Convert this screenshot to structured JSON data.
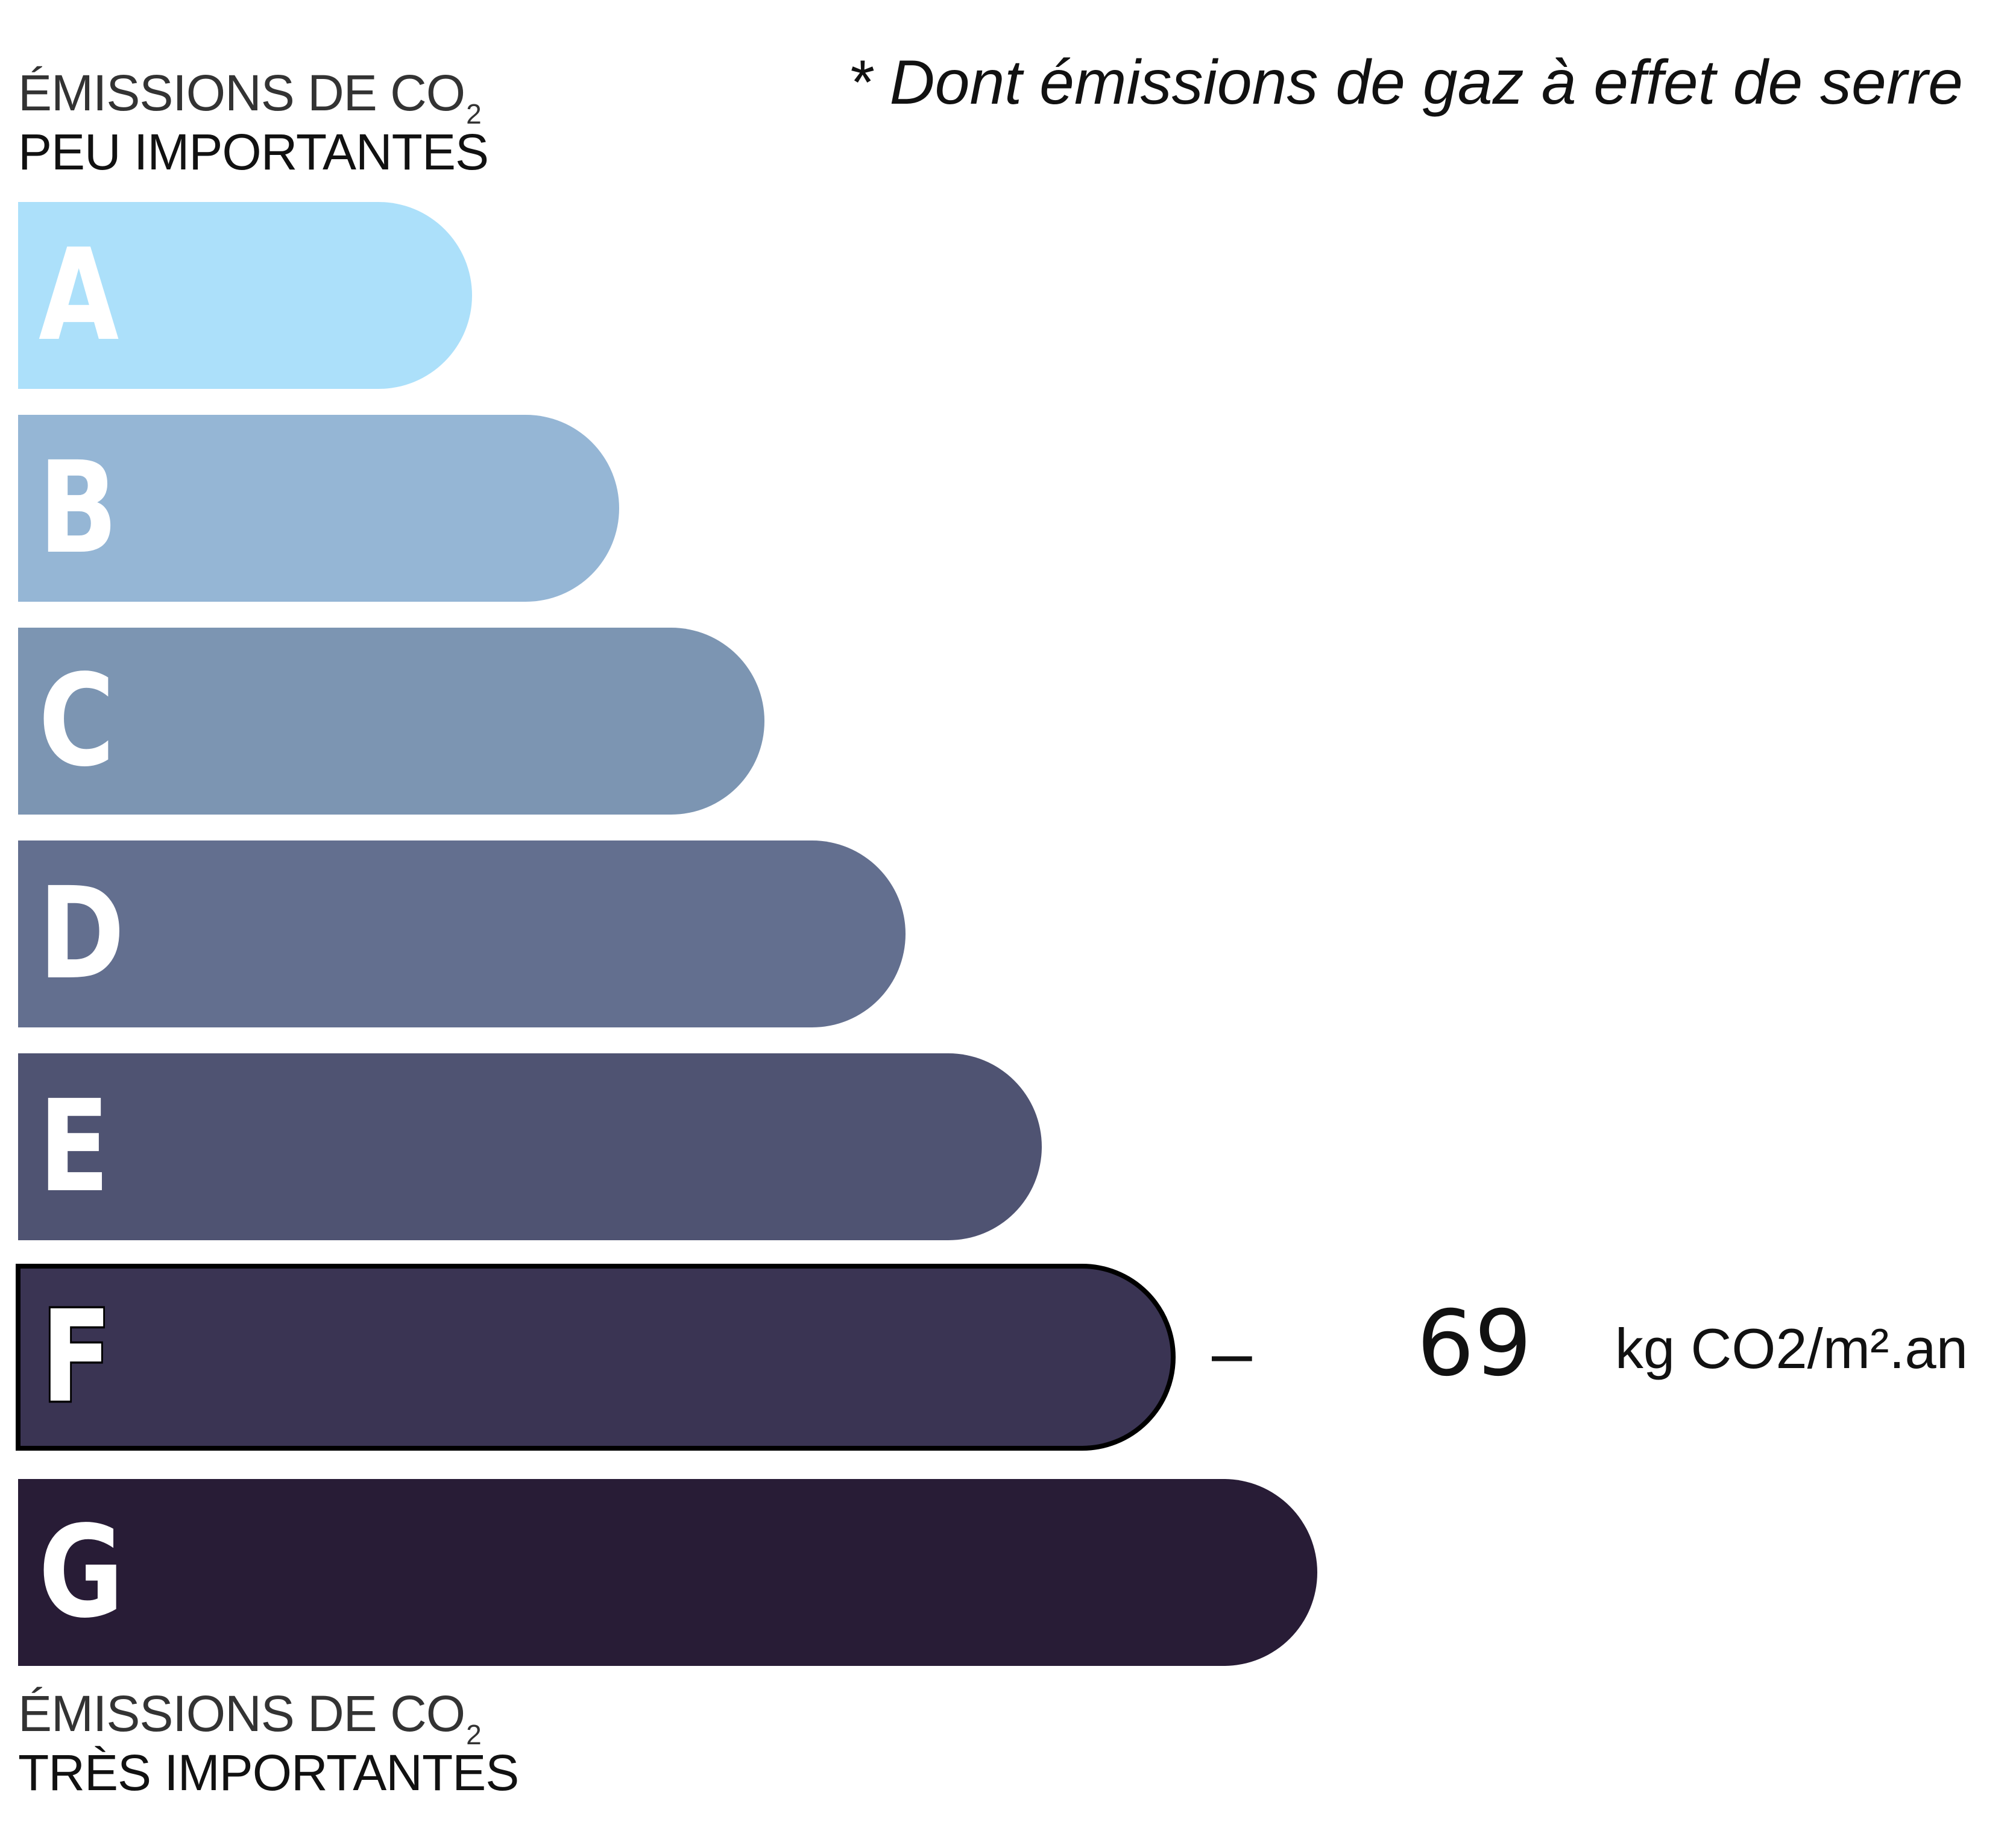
{
  "header_top": {
    "line1": "ÉMISSIONS DE CO",
    "line1_sub": "2",
    "line2": "PEU IMPORTANTES"
  },
  "header_bottom": {
    "line1": "ÉMISSIONS DE CO",
    "line1_sub": "2",
    "line2": "TRÈS IMPORTANTES"
  },
  "footnote": "* Dont émissions de gaz à effet de serre",
  "classes": [
    {
      "letter": "A",
      "color": "#ace0fa"
    },
    {
      "letter": "B",
      "color": "#95b6d5"
    },
    {
      "letter": "C",
      "color": "#7c95b2"
    },
    {
      "letter": "D",
      "color": "#636f8f"
    },
    {
      "letter": "E",
      "color": "#4f5372"
    },
    {
      "letter": "F",
      "color": "#3a3453"
    },
    {
      "letter": "G",
      "color": "#281c36"
    }
  ],
  "selected_class": "F",
  "value": {
    "dash": "–",
    "number": "69",
    "unit": "kg CO2/m².an"
  }
}
